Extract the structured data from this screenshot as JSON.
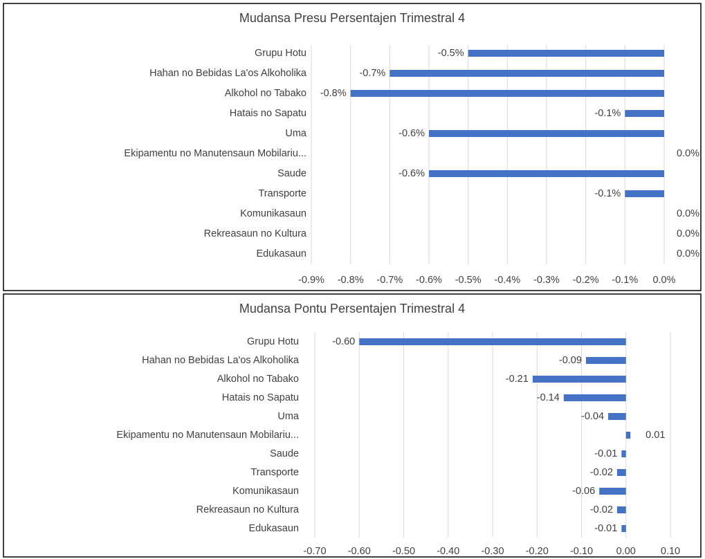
{
  "chart_data": [
    {
      "type": "barh",
      "title": "Mudansa Presu Persentajen Trimestral 4",
      "categories": [
        "Grupu Hotu",
        "Hahan no Bebidas La'os Alkoholika",
        "Alkohol no Tabako",
        "Hatais no Sapatu",
        "Uma",
        "Ekipamentu no Manutensaun Mobilariu...",
        "Saude",
        "Transporte",
        "Komunikasaun",
        "Rekreasaun no Kultura",
        "Edukasaun"
      ],
      "values": [
        -0.5,
        -0.7,
        -0.8,
        -0.1,
        -0.6,
        0.0,
        -0.6,
        -0.1,
        0.0,
        0.0,
        0.0
      ],
      "value_labels": [
        "-0.5%",
        "-0.7%",
        "-0.8%",
        "-0.1%",
        "-0.6%",
        "0.0%",
        "-0.6%",
        "-0.1%",
        "0.0%",
        "0.0%",
        "0.0%"
      ],
      "color": "#4472c4",
      "xlim": [
        -0.9,
        0.0
      ],
      "xticks": [
        {
          "value": -0.9,
          "label": "-0.9%"
        },
        {
          "value": -0.8,
          "label": "-0.8%"
        },
        {
          "value": -0.7,
          "label": "-0.7%"
        },
        {
          "value": -0.6,
          "label": "-0.6%"
        },
        {
          "value": -0.5,
          "label": "-0.5%"
        },
        {
          "value": -0.4,
          "label": "-0.4%"
        },
        {
          "value": -0.3,
          "label": "-0.3%"
        },
        {
          "value": -0.2,
          "label": "-0.2%"
        },
        {
          "value": -0.1,
          "label": "-0.1%"
        },
        {
          "value": 0.0,
          "label": "0.0%"
        }
      ],
      "grid": true
    },
    {
      "type": "barh",
      "title": "Mudansa Pontu Persentajen Trimestral 4",
      "categories": [
        "Grupu Hotu",
        "Hahan no Bebidas La'os Alkoholika",
        "Alkohol no Tabako",
        "Hatais no Sapatu",
        "Uma",
        "Ekipamentu no Manutensaun Mobilariu...",
        "Saude",
        "Transporte",
        "Komunikasaun",
        "Rekreasaun no Kultura",
        "Edukasaun"
      ],
      "values": [
        -0.6,
        -0.09,
        -0.21,
        -0.14,
        -0.04,
        0.01,
        -0.01,
        -0.02,
        -0.06,
        -0.02,
        -0.01
      ],
      "value_labels": [
        "-0.60",
        "-0.09",
        "-0.21",
        "-0.14",
        "-0.04",
        "0.01",
        "-0.01",
        "-0.02",
        "-0.06",
        "-0.02",
        "-0.01"
      ],
      "color": "#4472c4",
      "xlim": [
        -0.7,
        0.1
      ],
      "xticks": [
        {
          "value": -0.7,
          "label": "-0.70"
        },
        {
          "value": -0.6,
          "label": "-0.60"
        },
        {
          "value": -0.5,
          "label": "-0.50"
        },
        {
          "value": -0.4,
          "label": "-0.40"
        },
        {
          "value": -0.3,
          "label": "-0.30"
        },
        {
          "value": -0.2,
          "label": "-0.20"
        },
        {
          "value": -0.1,
          "label": "-0.10"
        },
        {
          "value": 0.0,
          "label": "0.00"
        },
        {
          "value": 0.1,
          "label": "0.10"
        }
      ],
      "grid": true
    }
  ]
}
